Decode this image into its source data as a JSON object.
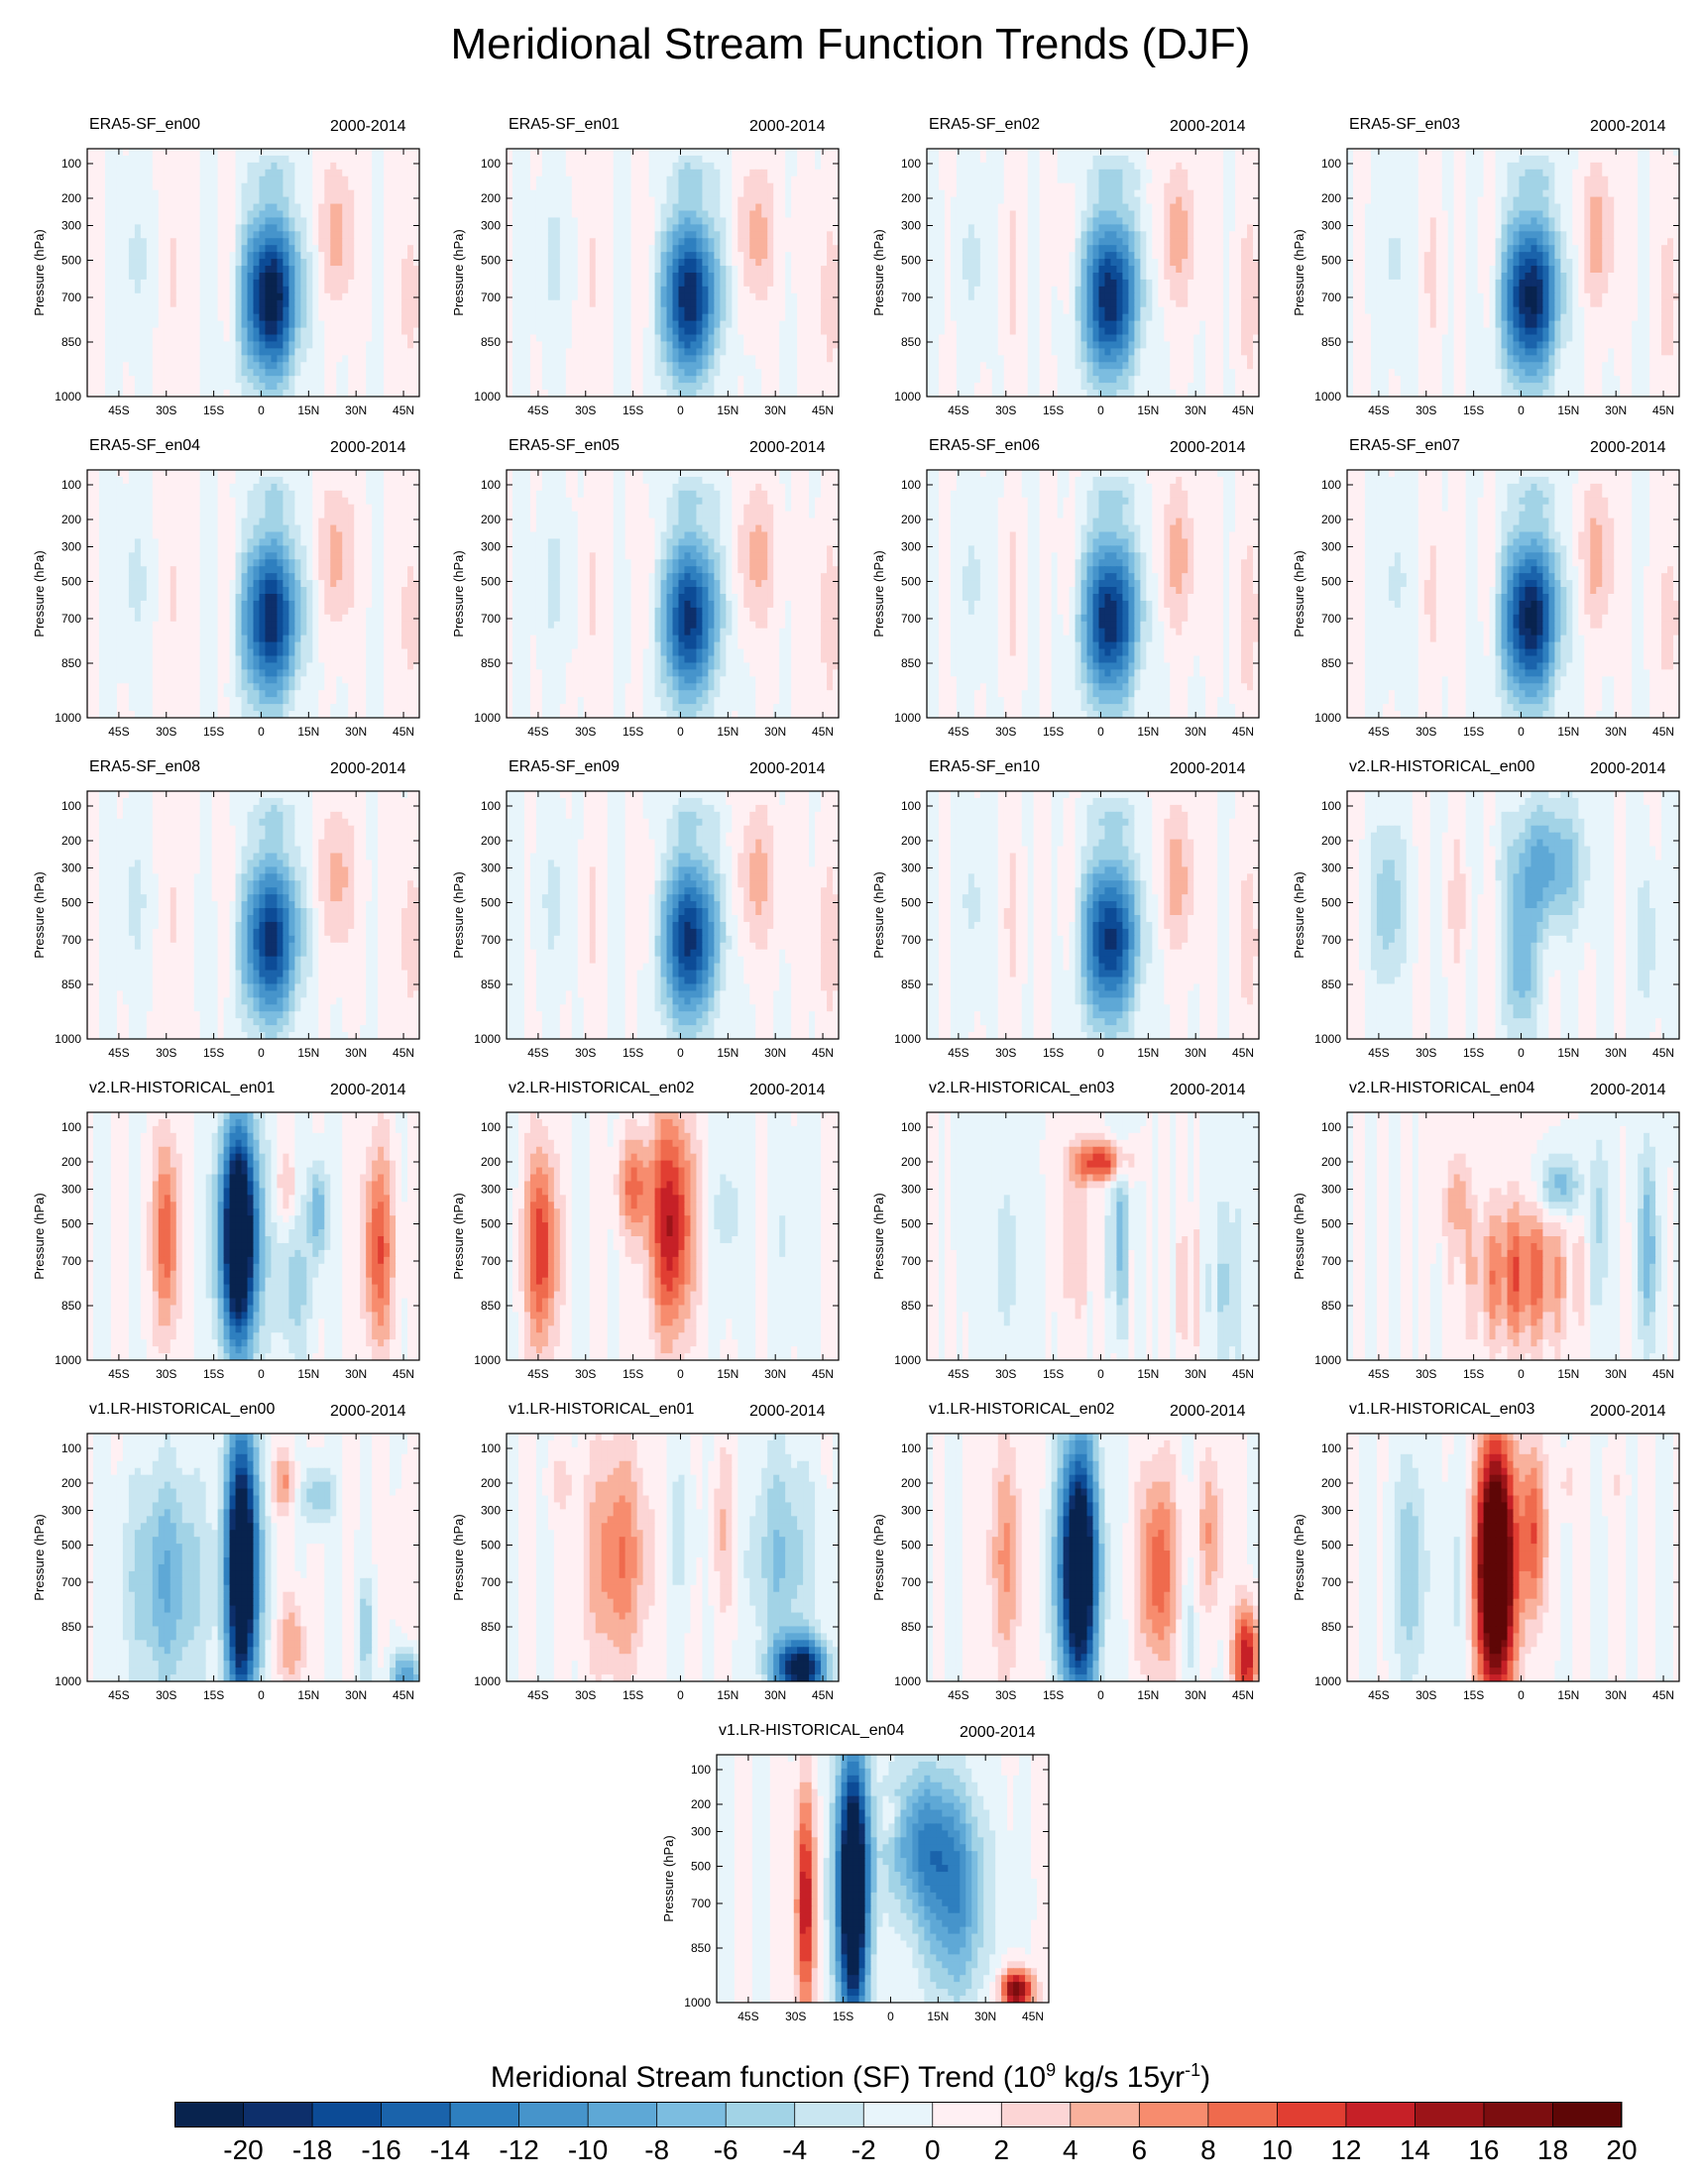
{
  "title": "Meridional Stream Function Trends (DJF)",
  "colorbar": {
    "title_pre": "Meridional Stream function (SF) Trend (10",
    "title_sup1": "9",
    "title_mid": " kg/s 15yr",
    "title_sup2": "-1",
    "title_post": ")",
    "levels": [
      -20,
      -18,
      -16,
      -14,
      -12,
      -10,
      -8,
      -6,
      -4,
      -2,
      0,
      2,
      4,
      6,
      8,
      10,
      12,
      14,
      16,
      18,
      20
    ],
    "colors": [
      "#08234e",
      "#0d2f6b",
      "#0c4b96",
      "#1a63ab",
      "#2e7fbf",
      "#4694cb",
      "#5ea8d6",
      "#7cbde0",
      "#a2d3e6",
      "#c9e6f1",
      "#e8f5fb",
      "#fff0f3",
      "#fcd5d5",
      "#f9b19c",
      "#f78c6e",
      "#ef6a4d",
      "#e13e32",
      "#c62027",
      "#9c1418",
      "#7c0d0f",
      "#5e0606"
    ]
  },
  "chart_data": {
    "type": "heatmap",
    "ylabel": "Pressure (hPa)",
    "y_ticks": [
      "100",
      "200",
      "300",
      "500",
      "700",
      "850",
      "1000"
    ],
    "x_ticks": [
      "45S",
      "30S",
      "15S",
      "0",
      "15N",
      "30N",
      "45N"
    ],
    "xlim": [
      -55,
      50
    ],
    "period": "2000-2014",
    "panels": [
      {
        "name": "ERA5-SF_en00",
        "style": "era",
        "amp": 1.0,
        "seed": 1
      },
      {
        "name": "ERA5-SF_en01",
        "style": "era",
        "amp": 0.9,
        "seed": 2
      },
      {
        "name": "ERA5-SF_en02",
        "style": "era",
        "amp": 0.9,
        "seed": 3
      },
      {
        "name": "ERA5-SF_en03",
        "style": "era",
        "amp": 0.95,
        "seed": 4
      },
      {
        "name": "ERA5-SF_en04",
        "style": "era",
        "amp": 0.9,
        "seed": 5
      },
      {
        "name": "ERA5-SF_en05",
        "style": "era",
        "amp": 0.85,
        "seed": 6
      },
      {
        "name": "ERA5-SF_en06",
        "style": "era",
        "amp": 0.9,
        "seed": 7
      },
      {
        "name": "ERA5-SF_en07",
        "style": "era",
        "amp": 0.95,
        "seed": 8
      },
      {
        "name": "ERA5-SF_en08",
        "style": "era",
        "amp": 0.85,
        "seed": 9
      },
      {
        "name": "ERA5-SF_en09",
        "style": "era",
        "amp": 0.85,
        "seed": 10
      },
      {
        "name": "ERA5-SF_en10",
        "style": "era",
        "amp": 0.85,
        "seed": 11
      },
      {
        "name": "v2.LR-HISTORICAL_en00",
        "style": "v2a",
        "amp": 1.0,
        "seed": 12
      },
      {
        "name": "v2.LR-HISTORICAL_en01",
        "style": "v2b",
        "amp": 1.0,
        "seed": 13
      },
      {
        "name": "v2.LR-HISTORICAL_en02",
        "style": "v2c",
        "amp": 1.0,
        "seed": 14
      },
      {
        "name": "v2.LR-HISTORICAL_en03",
        "style": "v2d",
        "amp": 1.0,
        "seed": 15
      },
      {
        "name": "v2.LR-HISTORICAL_en04",
        "style": "v2e",
        "amp": 1.0,
        "seed": 16
      },
      {
        "name": "v1.LR-HISTORICAL_en00",
        "style": "v1a",
        "amp": 1.0,
        "seed": 17
      },
      {
        "name": "v1.LR-HISTORICAL_en01",
        "style": "v1b",
        "amp": 1.0,
        "seed": 18
      },
      {
        "name": "v1.LR-HISTORICAL_en02",
        "style": "v1c",
        "amp": 1.0,
        "seed": 19
      },
      {
        "name": "v1.LR-HISTORICAL_en03",
        "style": "v1d",
        "amp": 1.0,
        "seed": 20
      },
      {
        "name": "v1.LR-HISTORICAL_en04",
        "style": "v1e",
        "amp": 1.0,
        "seed": 21
      }
    ]
  }
}
